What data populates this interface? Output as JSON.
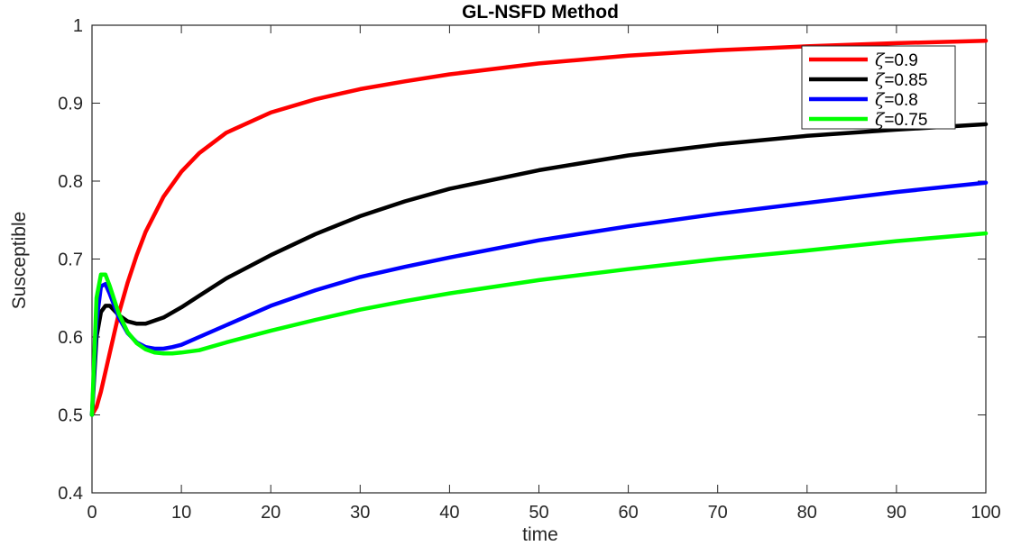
{
  "chart_data": {
    "type": "line",
    "title": "GL-NSFD Method",
    "xlabel": "time",
    "ylabel": "Susceptible",
    "xlim": [
      0,
      100
    ],
    "ylim": [
      0.4,
      1
    ],
    "xticks": [
      "0",
      "10",
      "20",
      "30",
      "40",
      "50",
      "60",
      "70",
      "80",
      "90",
      "100"
    ],
    "yticks": [
      "0.4",
      "0.5",
      "0.6",
      "0.7",
      "0.8",
      "0.9",
      "1"
    ],
    "grid": false,
    "legend_position": "top-right",
    "series": [
      {
        "name": "ζ=0.9",
        "symbol": "ζ",
        "value_text": "=0.9",
        "color": "#ff0000",
        "x": [
          0,
          0.5,
          1,
          2,
          3,
          4,
          5,
          6,
          8,
          10,
          12,
          15,
          20,
          25,
          30,
          35,
          40,
          50,
          60,
          70,
          80,
          90,
          100
        ],
        "y": [
          0.5,
          0.51,
          0.53,
          0.58,
          0.63,
          0.67,
          0.705,
          0.735,
          0.78,
          0.812,
          0.836,
          0.862,
          0.888,
          0.905,
          0.918,
          0.928,
          0.937,
          0.951,
          0.961,
          0.968,
          0.973,
          0.977,
          0.98
        ]
      },
      {
        "name": "ζ=0.85",
        "symbol": "ζ",
        "value_text": "=0.85",
        "color": "#000000",
        "x": [
          0,
          0.5,
          1,
          1.5,
          2,
          3,
          4,
          5,
          6,
          8,
          10,
          12,
          15,
          20,
          25,
          30,
          35,
          40,
          50,
          60,
          70,
          80,
          90,
          100
        ],
        "y": [
          0.5,
          0.6,
          0.632,
          0.64,
          0.64,
          0.628,
          0.62,
          0.617,
          0.617,
          0.625,
          0.638,
          0.653,
          0.675,
          0.705,
          0.732,
          0.755,
          0.774,
          0.79,
          0.814,
          0.833,
          0.847,
          0.858,
          0.866,
          0.873
        ]
      },
      {
        "name": "ζ=0.8",
        "symbol": "ζ",
        "value_text": "=0.8",
        "color": "#0000ff",
        "x": [
          0,
          0.5,
          1,
          1.5,
          2,
          3,
          4,
          5,
          6,
          7,
          8,
          9,
          10,
          12,
          15,
          20,
          25,
          30,
          35,
          40,
          50,
          60,
          70,
          80,
          90,
          100
        ],
        "y": [
          0.5,
          0.62,
          0.665,
          0.668,
          0.655,
          0.625,
          0.605,
          0.593,
          0.587,
          0.585,
          0.585,
          0.587,
          0.59,
          0.6,
          0.615,
          0.64,
          0.66,
          0.677,
          0.69,
          0.702,
          0.724,
          0.742,
          0.758,
          0.772,
          0.786,
          0.798
        ]
      },
      {
        "name": "ζ=0.75",
        "symbol": "ζ",
        "value_text": "=0.75",
        "color": "#00ff00",
        "x": [
          0,
          0.5,
          1,
          1.5,
          2,
          3,
          4,
          5,
          6,
          7,
          8,
          9,
          10,
          12,
          15,
          20,
          25,
          30,
          35,
          40,
          50,
          60,
          70,
          80,
          90,
          100
        ],
        "y": [
          0.5,
          0.65,
          0.68,
          0.68,
          0.665,
          0.63,
          0.606,
          0.592,
          0.584,
          0.58,
          0.579,
          0.579,
          0.58,
          0.583,
          0.593,
          0.608,
          0.622,
          0.635,
          0.646,
          0.656,
          0.673,
          0.687,
          0.7,
          0.711,
          0.723,
          0.733
        ]
      }
    ]
  }
}
